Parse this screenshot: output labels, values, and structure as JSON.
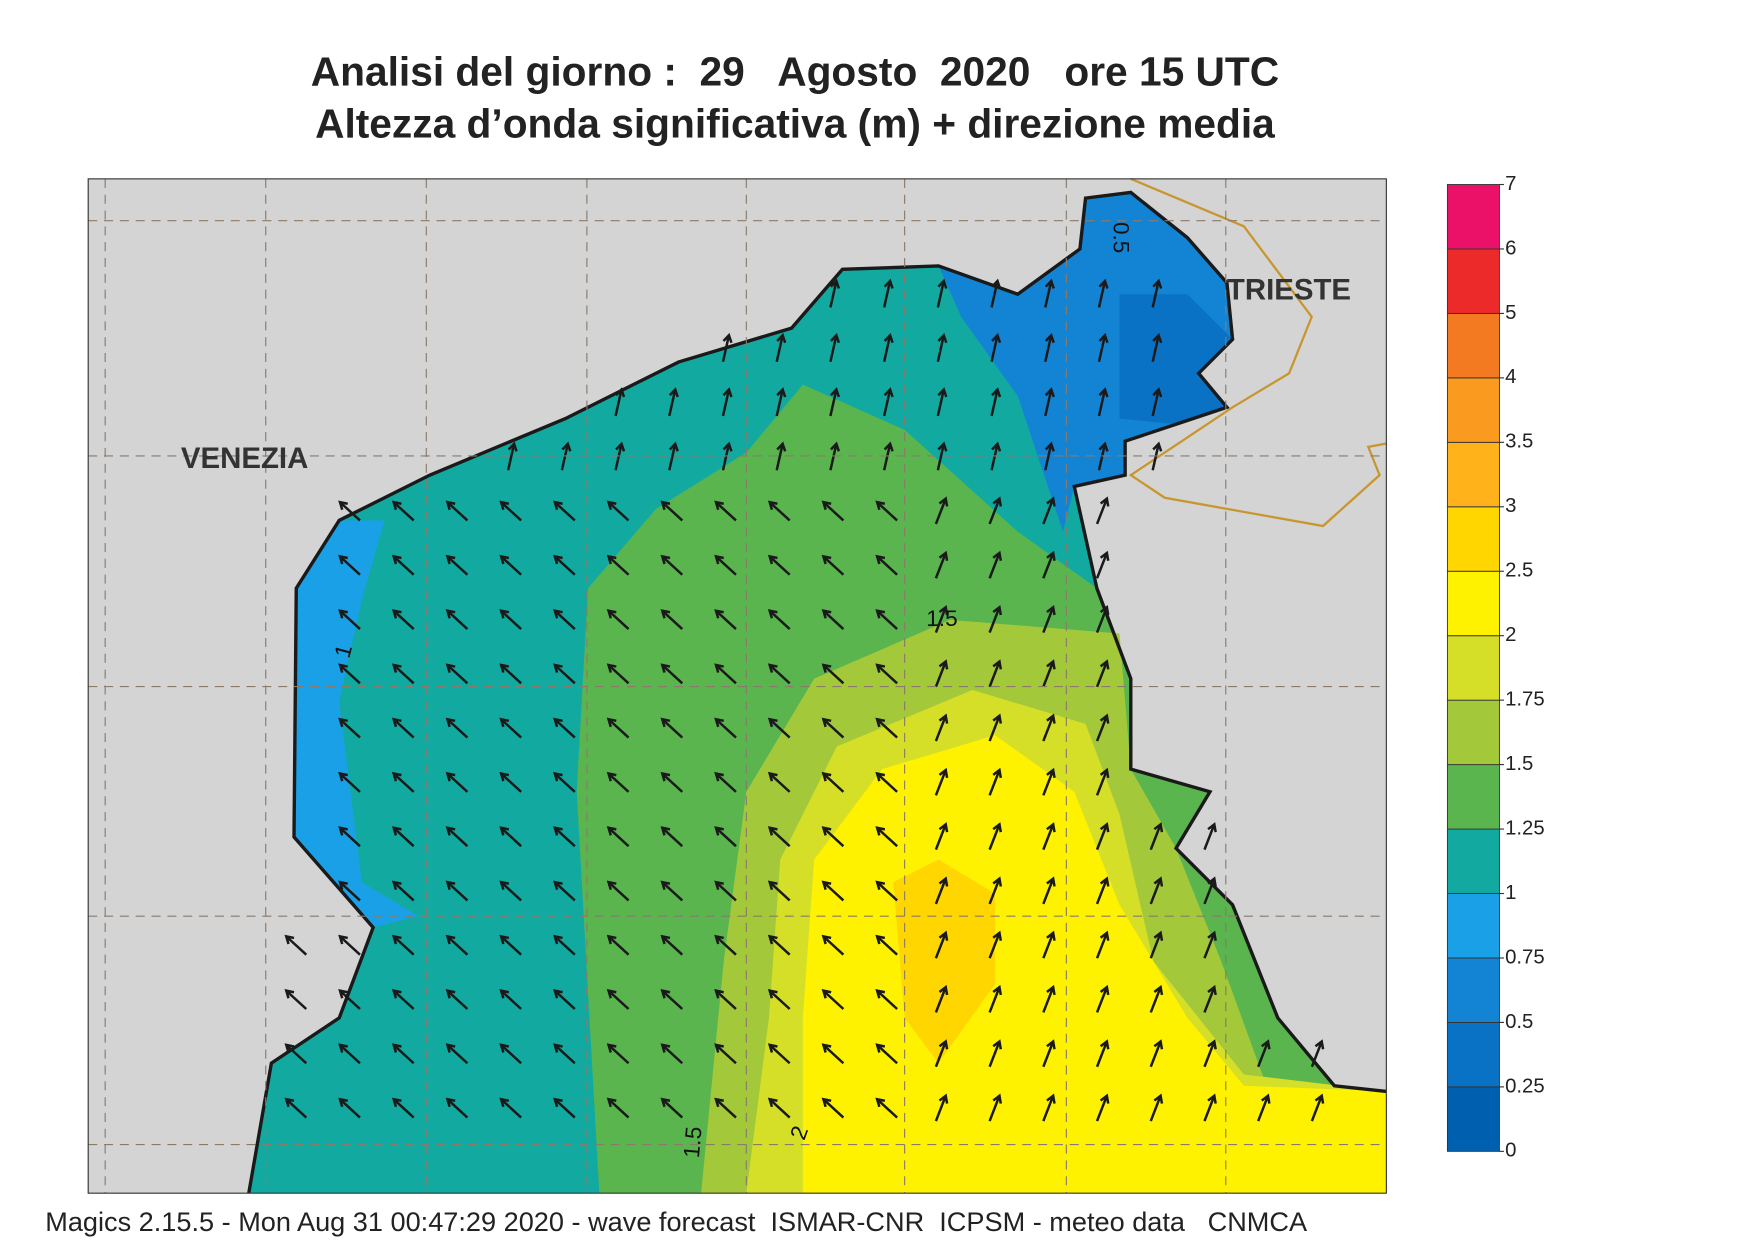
{
  "header": {
    "title": "Analisi del giorno :  29   Agosto  2020   ore 15 UTC",
    "subtitle": "Altezza d’onda significativa (m) + direzione media"
  },
  "map": {
    "cities": [
      "VENEZIA",
      "TRIESTE"
    ],
    "contour_labels": [
      "0.5",
      "1",
      "1.5",
      "1.5",
      "2"
    ]
  },
  "colorbar": {
    "ticks": [
      0,
      0.25,
      0.5,
      0.75,
      1,
      1.25,
      1.5,
      1.75,
      2,
      2.5,
      3,
      3.5,
      4,
      5,
      6,
      7
    ],
    "colors": [
      "#0060b0",
      "#0a72c4",
      "#1384d4",
      "#1aa0e6",
      "#12aaa0",
      "#5ab54e",
      "#a3c83a",
      "#d6df28",
      "#fff200",
      "#ffd600",
      "#ffb21a",
      "#fa9a1e",
      "#f47a22",
      "#ec2a2a",
      "#ec1168"
    ]
  },
  "footer": "Magics 2.15.5 - Mon Aug 31 00:47:29 2020 - wave forecast  ISMAR-CNR  ICPSM - meteo data   CNMCA"
}
